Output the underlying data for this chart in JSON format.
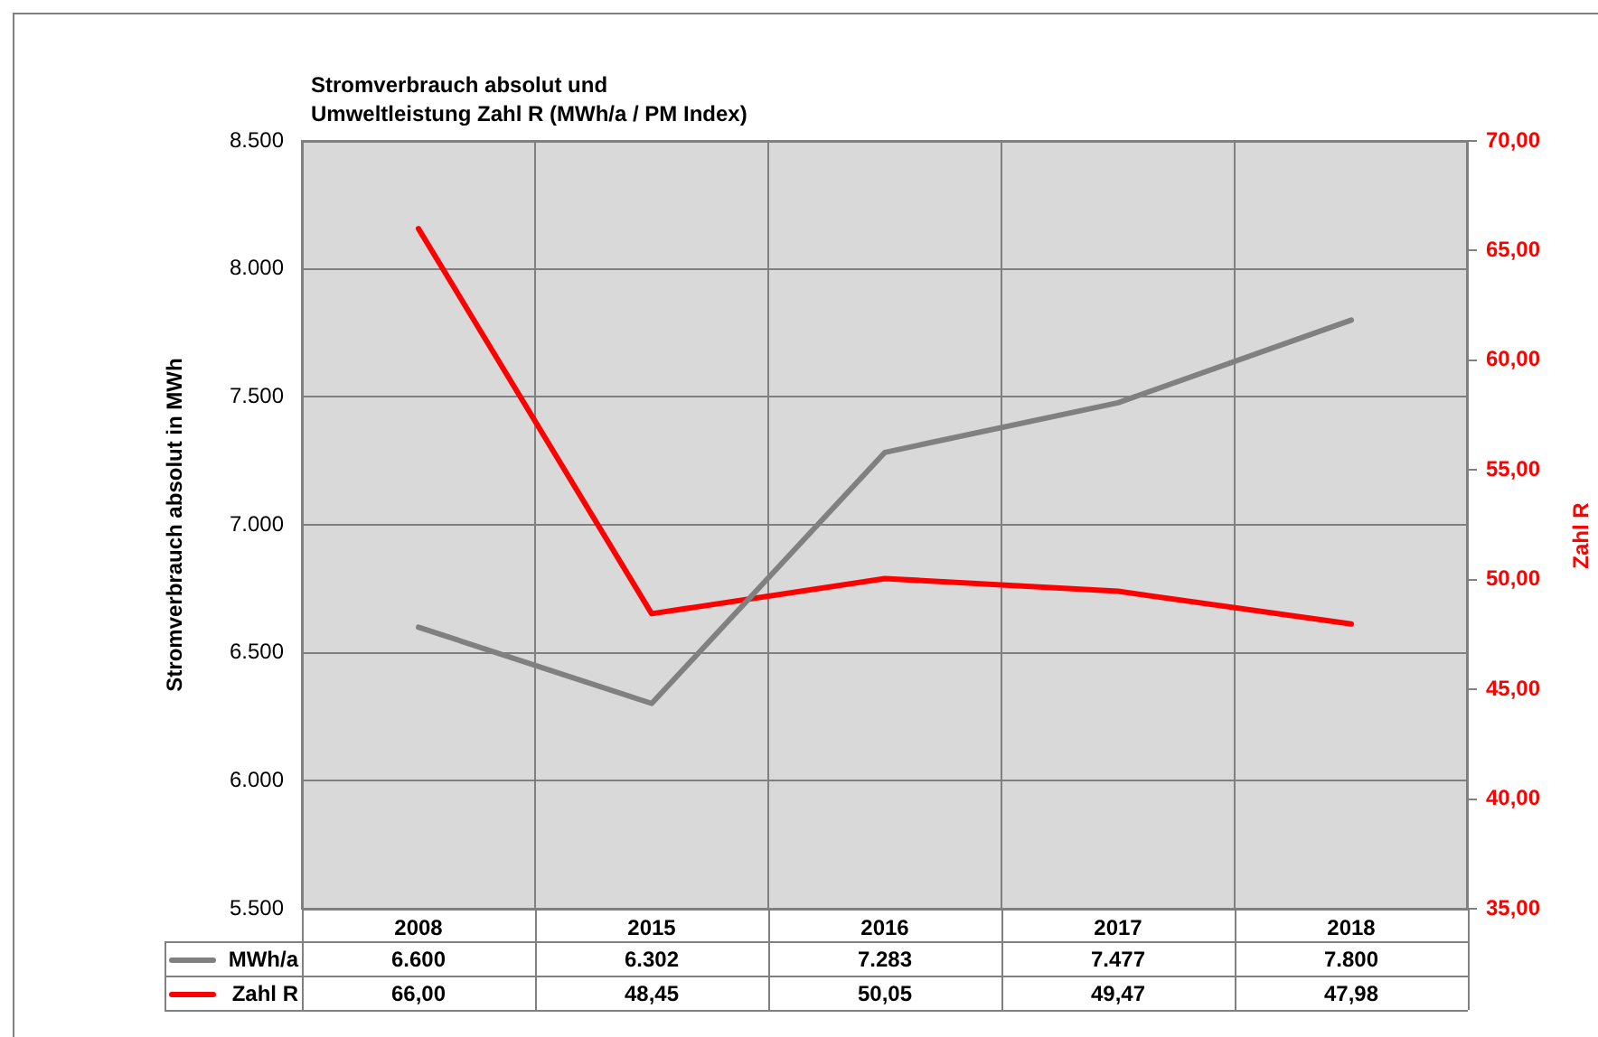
{
  "chart_data": {
    "type": "line",
    "title": "Stromverbrauch absolut und\nUmweltleistung Zahl R (MWh/a / PM Index)",
    "ylabel": "Stromverbrauch absolut in MWh",
    "y2label": "Zahl R",
    "categories": [
      "2008",
      "2015",
      "2016",
      "2017",
      "2018"
    ],
    "series": [
      {
        "name": "MWh/a",
        "color": "#808080",
        "values": [
          6600,
          6302,
          7283,
          7477,
          7800
        ],
        "value_labels": [
          "6.600",
          "6.302",
          "7.283",
          "7.477",
          "7.800"
        ]
      },
      {
        "name": "Zahl R",
        "color": "#ff0000",
        "axis": "y2",
        "values": [
          66.0,
          48.45,
          50.05,
          49.47,
          47.98
        ],
        "value_labels": [
          "66,00",
          "48,45",
          "50,05",
          "49,47",
          "47,98"
        ]
      }
    ],
    "ylim": [
      5500,
      8500
    ],
    "yticks": [
      {
        "value": 5500,
        "label": "5.500"
      },
      {
        "value": 6000,
        "label": "6.000"
      },
      {
        "value": 6500,
        "label": "6.500"
      },
      {
        "value": 7000,
        "label": "7.000"
      },
      {
        "value": 7500,
        "label": "7.500"
      },
      {
        "value": 8000,
        "label": "8.000"
      },
      {
        "value": 8500,
        "label": "8.500"
      }
    ],
    "y2lim": [
      35,
      70
    ],
    "y2ticks": [
      {
        "value": 35,
        "label": "35,00"
      },
      {
        "value": 40,
        "label": "40,00"
      },
      {
        "value": 45,
        "label": "45,00"
      },
      {
        "value": 50,
        "label": "50,00"
      },
      {
        "value": 55,
        "label": "55,00"
      },
      {
        "value": 60,
        "label": "60,00"
      },
      {
        "value": 65,
        "label": "65,00"
      },
      {
        "value": 70,
        "label": "70,00"
      }
    ],
    "grid": true,
    "legend": "bottom",
    "marker": "none",
    "line_style": "solid"
  }
}
